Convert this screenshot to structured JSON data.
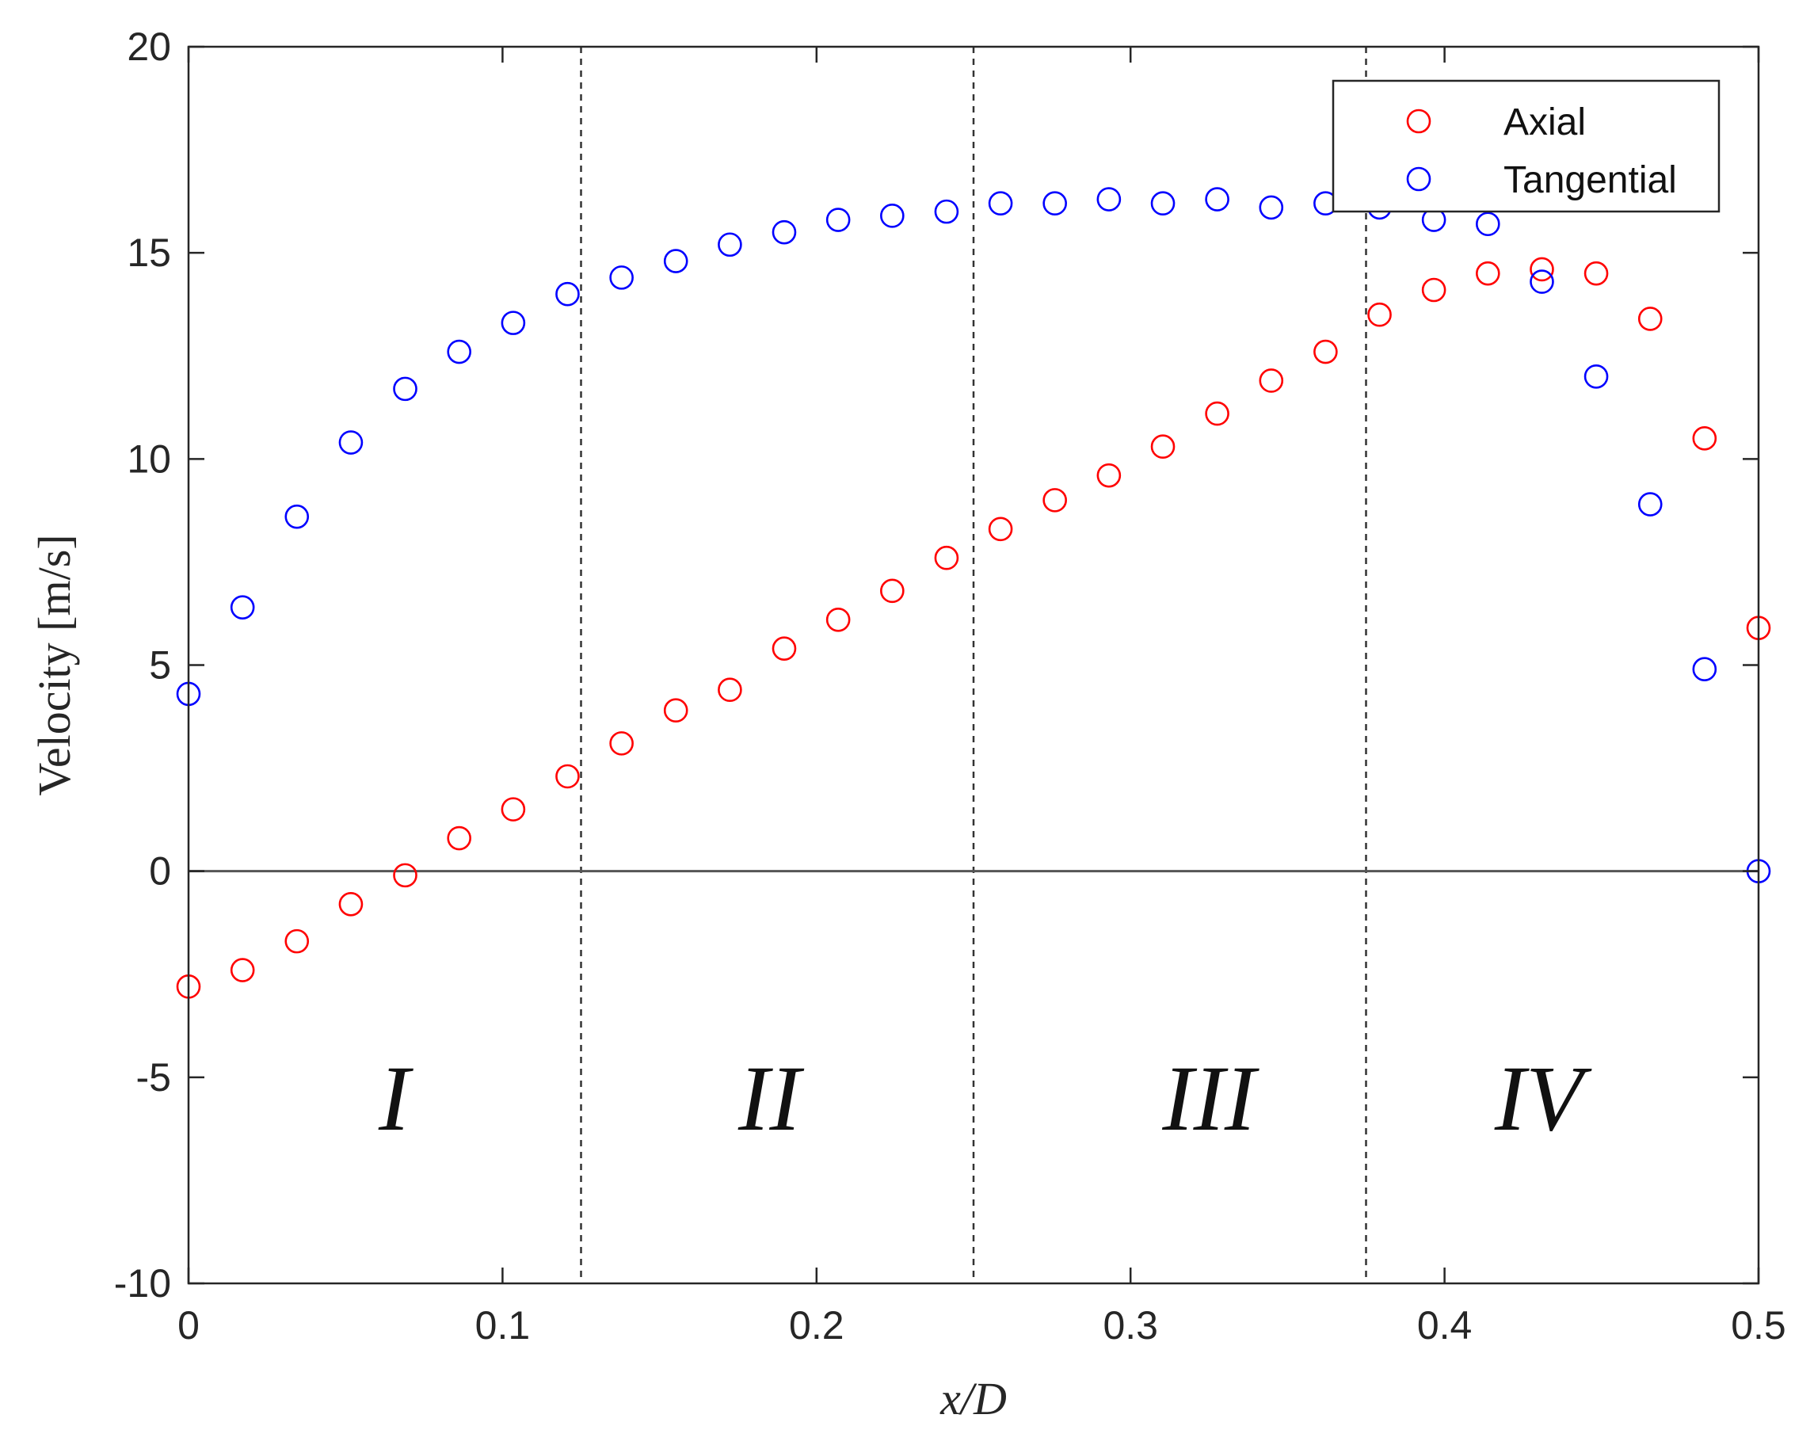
{
  "chart_data": {
    "type": "scatter",
    "xlabel": "x/D",
    "ylabel": "Velocity [m/s]",
    "xlim": [
      0,
      0.5
    ],
    "ylim": [
      -10,
      20
    ],
    "x_ticks": [
      "0",
      "0.1",
      "0.2",
      "0.3",
      "0.4",
      "0.5"
    ],
    "y_ticks": [
      "-10",
      "-5",
      "0",
      "5",
      "10",
      "15",
      "20"
    ],
    "x_tick_values": [
      0,
      0.1,
      0.2,
      0.3,
      0.4,
      0.5
    ],
    "y_tick_values": [
      -10,
      -5,
      0,
      5,
      10,
      15,
      20
    ],
    "grid": false,
    "legend_position": "top-right",
    "zero_line": true,
    "region_dividers_x": [
      0.125,
      0.25,
      0.375
    ],
    "regions": [
      {
        "label": "I",
        "x": 0.0655
      },
      {
        "label": "II",
        "x": 0.185
      },
      {
        "label": "III",
        "x": 0.325
      },
      {
        "label": "IV",
        "x": 0.43
      }
    ],
    "region_label_y": -5.5,
    "x": [
      0,
      0.0172,
      0.0345,
      0.0517,
      0.069,
      0.0862,
      0.1034,
      0.1207,
      0.1379,
      0.1552,
      0.1724,
      0.1897,
      0.2069,
      0.2241,
      0.2414,
      0.2586,
      0.2759,
      0.2931,
      0.3103,
      0.3276,
      0.3448,
      0.3621,
      0.3793,
      0.3966,
      0.4138,
      0.431,
      0.4483,
      0.4655,
      0.4828,
      0.5
    ],
    "series": [
      {
        "name": "Axial",
        "color": "#ff0000",
        "values": [
          -2.8,
          -2.4,
          -1.7,
          -0.8,
          -0.1,
          0.8,
          1.5,
          2.3,
          3.1,
          3.9,
          4.4,
          5.4,
          6.1,
          6.8,
          7.6,
          8.3,
          9.0,
          9.6,
          10.3,
          11.1,
          11.9,
          12.6,
          13.5,
          14.1,
          14.5,
          14.6,
          14.5,
          13.4,
          10.5,
          5.9
        ]
      },
      {
        "name": "Tangential",
        "color": "#0000ff",
        "values": [
          4.3,
          6.4,
          8.6,
          10.4,
          11.7,
          12.6,
          13.3,
          14.0,
          14.4,
          14.8,
          15.2,
          15.5,
          15.8,
          15.9,
          16.0,
          16.2,
          16.2,
          16.3,
          16.2,
          16.3,
          16.1,
          16.2,
          16.1,
          15.8,
          15.7,
          14.3,
          12.0,
          8.9,
          4.9,
          0.0
        ]
      }
    ]
  },
  "colors": {
    "axes": "#262626",
    "divider": "#333333",
    "zero_line": "#555555"
  }
}
